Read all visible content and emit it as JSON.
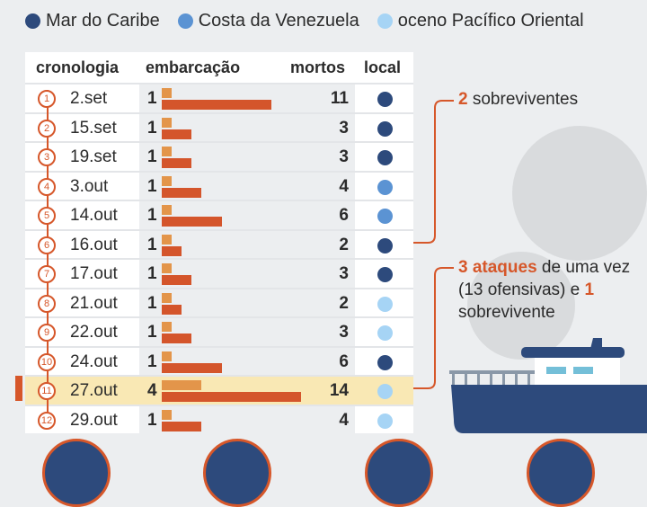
{
  "legend": [
    {
      "label": "Mar do Caribe",
      "color": "#2d4a7c"
    },
    {
      "label": "Costa da Venezuela",
      "color": "#5b93d3"
    },
    {
      "label": "oceno Pacífico Oriental",
      "color": "#a6d4f5"
    }
  ],
  "headers": {
    "chronology": "cronologia",
    "vessel": "embarcação",
    "deaths": "mortos",
    "location": "local"
  },
  "rows": [
    {
      "n": "1",
      "date": "2.set",
      "boats": 1,
      "deaths": 11,
      "loc": "#2d4a7c"
    },
    {
      "n": "2",
      "date": "15.set",
      "boats": 1,
      "deaths": 3,
      "loc": "#2d4a7c"
    },
    {
      "n": "3",
      "date": "19.set",
      "boats": 1,
      "deaths": 3,
      "loc": "#2d4a7c"
    },
    {
      "n": "4",
      "date": "3.out",
      "boats": 1,
      "deaths": 4,
      "loc": "#5b93d3"
    },
    {
      "n": "5",
      "date": "14.out",
      "boats": 1,
      "deaths": 6,
      "loc": "#5b93d3"
    },
    {
      "n": "6",
      "date": "16.out",
      "boats": 1,
      "deaths": 2,
      "loc": "#2d4a7c"
    },
    {
      "n": "7",
      "date": "17.out",
      "boats": 1,
      "deaths": 3,
      "loc": "#2d4a7c"
    },
    {
      "n": "8",
      "date": "21.out",
      "boats": 1,
      "deaths": 2,
      "loc": "#a6d4f5"
    },
    {
      "n": "9",
      "date": "22.out",
      "boats": 1,
      "deaths": 3,
      "loc": "#a6d4f5"
    },
    {
      "n": "10",
      "date": "24.out",
      "boats": 1,
      "deaths": 6,
      "loc": "#2d4a7c"
    },
    {
      "n": "11",
      "date": "27.out",
      "boats": 4,
      "deaths": 14,
      "loc": "#a6d4f5",
      "highlight": true
    },
    {
      "n": "12",
      "date": "29.out",
      "boats": 1,
      "deaths": 4,
      "loc": "#a6d4f5"
    }
  ],
  "callout1": {
    "num": "2",
    "text": " sobreviventes"
  },
  "callout2": {
    "bold1": "3 ataques",
    "text1": " de uma vez (13 ofensivas) e ",
    "bold2": "1",
    "text2": " sobrevivente"
  }
}
